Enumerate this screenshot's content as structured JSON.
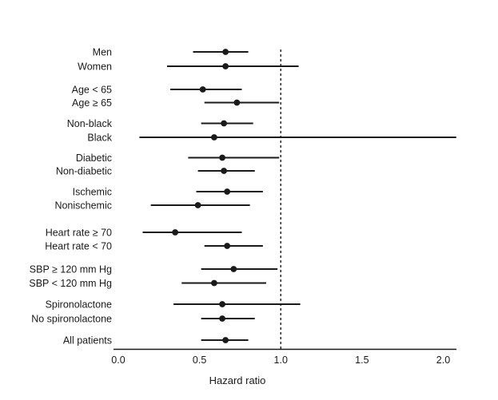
{
  "figure": {
    "background_color": "#ffffff",
    "foreground_color": "#1a1a1a"
  },
  "chart_data": {
    "type": "forest",
    "title": "",
    "xlabel": "Hazard ratio",
    "xlim": [
      0.0,
      2.1
    ],
    "xtick_values": [
      0,
      0.5,
      1,
      1.5,
      2
    ],
    "xtick_labels": [
      "0.0",
      "0.5",
      "1.0",
      "1.5",
      "2.0"
    ],
    "reference_line": 1.0,
    "grid": false,
    "legend": false,
    "marker": "filled-circle",
    "rows": [
      {
        "label": "Men",
        "hr": 0.66,
        "ci_low": 0.46,
        "ci_high": 0.8,
        "group": "sex"
      },
      {
        "label": "Women",
        "hr": 0.66,
        "ci_low": 0.3,
        "ci_high": 1.11,
        "group": "sex"
      },
      {
        "label": "Age < 65",
        "hr": 0.52,
        "ci_low": 0.32,
        "ci_high": 0.76,
        "group": "age"
      },
      {
        "label": "Age ≥ 65",
        "hr": 0.73,
        "ci_low": 0.53,
        "ci_high": 0.99,
        "group": "age"
      },
      {
        "label": "Non-black",
        "hr": 0.65,
        "ci_low": 0.51,
        "ci_high": 0.83,
        "group": "race"
      },
      {
        "label": "Black",
        "hr": 0.59,
        "ci_low": 0.13,
        "ci_high": 2.08,
        "group": "race"
      },
      {
        "label": "Diabetic",
        "hr": 0.64,
        "ci_low": 0.43,
        "ci_high": 0.99,
        "group": "diabetes"
      },
      {
        "label": "Non-diabetic",
        "hr": 0.65,
        "ci_low": 0.49,
        "ci_high": 0.84,
        "group": "diabetes"
      },
      {
        "label": "Ischemic",
        "hr": 0.67,
        "ci_low": 0.48,
        "ci_high": 0.89,
        "group": "etiology"
      },
      {
        "label": "Nonischemic",
        "hr": 0.49,
        "ci_low": 0.2,
        "ci_high": 0.81,
        "group": "etiology"
      },
      {
        "label": "Heart rate ≥ 70",
        "hr": 0.35,
        "ci_low": 0.15,
        "ci_high": 0.76,
        "group": "heart-rate"
      },
      {
        "label": "Heart rate < 70",
        "hr": 0.67,
        "ci_low": 0.53,
        "ci_high": 0.89,
        "group": "heart-rate"
      },
      {
        "label": "SBP ≥ 120 mm Hg",
        "hr": 0.71,
        "ci_low": 0.51,
        "ci_high": 0.98,
        "group": "sbp"
      },
      {
        "label": "SBP < 120 mm Hg",
        "hr": 0.59,
        "ci_low": 0.39,
        "ci_high": 0.91,
        "group": "sbp"
      },
      {
        "label": "Spironolactone",
        "hr": 0.64,
        "ci_low": 0.34,
        "ci_high": 1.12,
        "group": "spironolactone"
      },
      {
        "label": "No spironolactone",
        "hr": 0.64,
        "ci_low": 0.51,
        "ci_high": 0.84,
        "group": "spironolactone"
      },
      {
        "label": "All patients",
        "hr": 0.66,
        "ci_low": 0.51,
        "ci_high": 0.8,
        "group": "all"
      }
    ]
  }
}
